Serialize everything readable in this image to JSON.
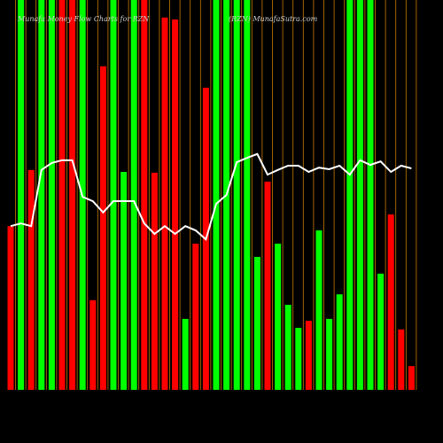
{
  "chart_data": {
    "type": "bar",
    "title": "Munafa Money Flow Charts for RZN",
    "subtitle": "(RZN) MunafaSutra.com",
    "categories": [
      null,
      null,
      null,
      null,
      null,
      null,
      null,
      null,
      null,
      null,
      null,
      null,
      null,
      null,
      null,
      null,
      null,
      null,
      null,
      null,
      null,
      null,
      null,
      null,
      null,
      null,
      null,
      null,
      null,
      null,
      null,
      null,
      null,
      null,
      null,
      null,
      null,
      null,
      null,
      null
    ],
    "values": [
      42.0,
      100,
      56.4,
      100,
      100,
      100,
      100,
      100,
      23.0,
      83.0,
      100,
      55.9,
      100,
      100,
      55.7,
      95.5,
      95.0,
      18.2,
      37.5,
      77.5,
      100,
      100,
      100,
      100,
      34.1,
      53.4,
      37.5,
      21.8,
      15.9,
      17.7,
      40.9,
      18.2,
      24.5,
      100,
      100,
      100,
      29.8,
      45.0,
      15.5,
      6.1
    ],
    "colors": [
      "#ff0000",
      "#00ff00",
      "#ff0000",
      "#00ff00",
      "#00ff00",
      "#ff0000",
      "#ff0000",
      "#00ff00",
      "#ff0000",
      "#ff0000",
      "#00ff00",
      "#00ff00",
      "#00ff00",
      "#ff0000",
      "#ff0000",
      "#ff0000",
      "#ff0000",
      "#00ff00",
      "#ff0000",
      "#ff0000",
      "#00ff00",
      "#00ff00",
      "#00ff00",
      "#00ff00",
      "#00ff00",
      "#ff0000",
      "#00ff00",
      "#00ff00",
      "#00ff00",
      "#ff0000",
      "#00ff00",
      "#00ff00",
      "#00ff00",
      "#00ff00",
      "#00ff00",
      "#00ff00",
      "#00ff00",
      "#ff0000",
      "#ff0000",
      "#ff0000"
    ],
    "line_values": [
      42.0,
      42.7,
      42.0,
      56.4,
      58.2,
      58.9,
      58.9,
      49.5,
      48.4,
      45.5,
      48.4,
      48.4,
      48.4,
      42.7,
      40.0,
      42.0,
      40.0,
      42.0,
      40.9,
      38.6,
      47.7,
      50.0,
      58.4,
      59.5,
      60.5,
      55.2,
      56.4,
      57.5,
      57.5,
      55.9,
      57.0,
      56.6,
      57.5,
      55.2,
      58.9,
      57.7,
      58.6,
      55.9,
      57.5,
      56.8
    ],
    "line_color": "#ffffff",
    "ylim": [
      0,
      100
    ]
  }
}
